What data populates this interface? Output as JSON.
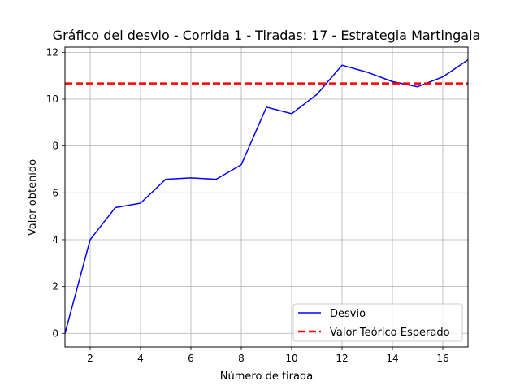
{
  "chart_data": {
    "type": "line",
    "title": "Gráfico del desvio - Corrida 1 - Tiradas: 17 - Estrategia Martingala",
    "xlabel": "Número de tirada",
    "ylabel": "Valor obtenido",
    "xlim": [
      1,
      17
    ],
    "ylim": [
      -0.58,
      12.22
    ],
    "xticks": [
      2,
      4,
      6,
      8,
      10,
      12,
      14,
      16
    ],
    "yticks": [
      0,
      2,
      4,
      6,
      8,
      10,
      12
    ],
    "grid": true,
    "legend_position": "bottom-right",
    "series": [
      {
        "name": "Desvio",
        "color": "#0000ff",
        "style": "solid",
        "x": [
          1,
          2,
          3,
          4,
          5,
          6,
          7,
          8,
          9,
          10,
          11,
          12,
          13,
          14,
          15,
          16,
          17
        ],
        "y": [
          0,
          4.0,
          5.37,
          5.56,
          6.58,
          6.64,
          6.58,
          7.2,
          9.66,
          9.38,
          10.2,
          11.45,
          11.15,
          10.75,
          10.53,
          10.95,
          11.68
        ]
      },
      {
        "name": "Valor Teórico Esperado",
        "color": "#ff0000",
        "style": "dashed",
        "y_constant": 10.67
      }
    ]
  }
}
